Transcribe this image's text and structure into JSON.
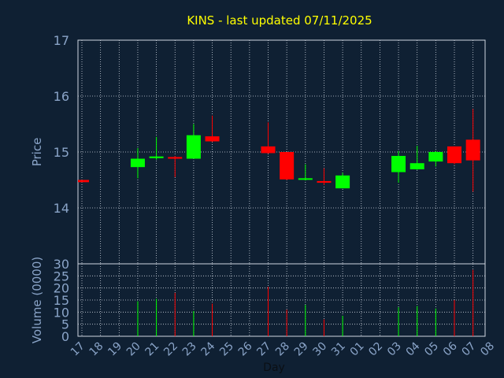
{
  "chart_data": {
    "type": "candlestick",
    "title": "KINS - last updated 07/11/2025",
    "xlabel": "Day",
    "colors": {
      "background": "#0f2033",
      "title": "#ffff00",
      "axis_text": "#8aa4c8",
      "grid": "#cfd6e0",
      "up": "#00ff00",
      "down": "#ff0000"
    },
    "x_ticks": [
      "17",
      "18",
      "19",
      "20",
      "21",
      "22",
      "23",
      "24",
      "25",
      "26",
      "27",
      "28",
      "29",
      "30",
      "31",
      "01",
      "02",
      "03",
      "04",
      "05",
      "06",
      "07",
      "08"
    ],
    "price_panel": {
      "ylabel": "Price",
      "ylim": [
        13.0,
        17.0
      ],
      "y_ticks": [
        14,
        15,
        16,
        17
      ],
      "grid": true
    },
    "volume_panel": {
      "ylabel": "Volume (0000)",
      "ylim": [
        0,
        30
      ],
      "y_ticks": [
        0,
        5,
        10,
        15,
        20,
        25,
        30
      ],
      "grid": true
    },
    "candles": [
      {
        "day": "17",
        "open": 14.5,
        "high": 14.5,
        "low": 14.46,
        "close": 14.46,
        "volume": 0
      },
      {
        "day": "20",
        "open": 14.73,
        "high": 15.07,
        "low": 14.53,
        "close": 14.88,
        "volume": 14.5
      },
      {
        "day": "21",
        "open": 14.89,
        "high": 15.27,
        "low": 14.86,
        "close": 14.92,
        "volume": 15.5
      },
      {
        "day": "22",
        "open": 14.91,
        "high": 14.93,
        "low": 14.55,
        "close": 14.88,
        "volume": 18.0
      },
      {
        "day": "23",
        "open": 14.88,
        "high": 15.5,
        "low": 14.88,
        "close": 15.3,
        "volume": 10.5
      },
      {
        "day": "24",
        "open": 15.28,
        "high": 15.65,
        "low": 15.18,
        "close": 15.19,
        "volume": 13.5
      },
      {
        "day": "27",
        "open": 15.1,
        "high": 15.53,
        "low": 14.97,
        "close": 14.98,
        "volume": 20.5
      },
      {
        "day": "28",
        "open": 15.0,
        "high": 15.0,
        "low": 14.5,
        "close": 14.51,
        "volume": 11.0
      },
      {
        "day": "29",
        "open": 14.51,
        "high": 14.78,
        "low": 14.49,
        "close": 14.53,
        "volume": 13.0
      },
      {
        "day": "30",
        "open": 14.48,
        "high": 14.71,
        "low": 14.41,
        "close": 14.45,
        "volume": 7.0
      },
      {
        "day": "31",
        "open": 14.35,
        "high": 14.63,
        "low": 14.35,
        "close": 14.58,
        "volume": 8.5
      },
      {
        "day": "03",
        "open": 14.64,
        "high": 15.02,
        "low": 14.45,
        "close": 14.93,
        "volume": 12.0
      },
      {
        "day": "04",
        "open": 14.69,
        "high": 15.11,
        "low": 14.68,
        "close": 14.8,
        "volume": 12.5
      },
      {
        "day": "05",
        "open": 14.83,
        "high": 15.02,
        "low": 14.74,
        "close": 15.0,
        "volume": 11.5
      },
      {
        "day": "06",
        "open": 15.1,
        "high": 15.1,
        "low": 14.78,
        "close": 14.8,
        "volume": 15.0
      },
      {
        "day": "07",
        "open": 15.22,
        "high": 15.77,
        "low": 14.29,
        "close": 14.85,
        "volume": 27.5
      }
    ]
  }
}
